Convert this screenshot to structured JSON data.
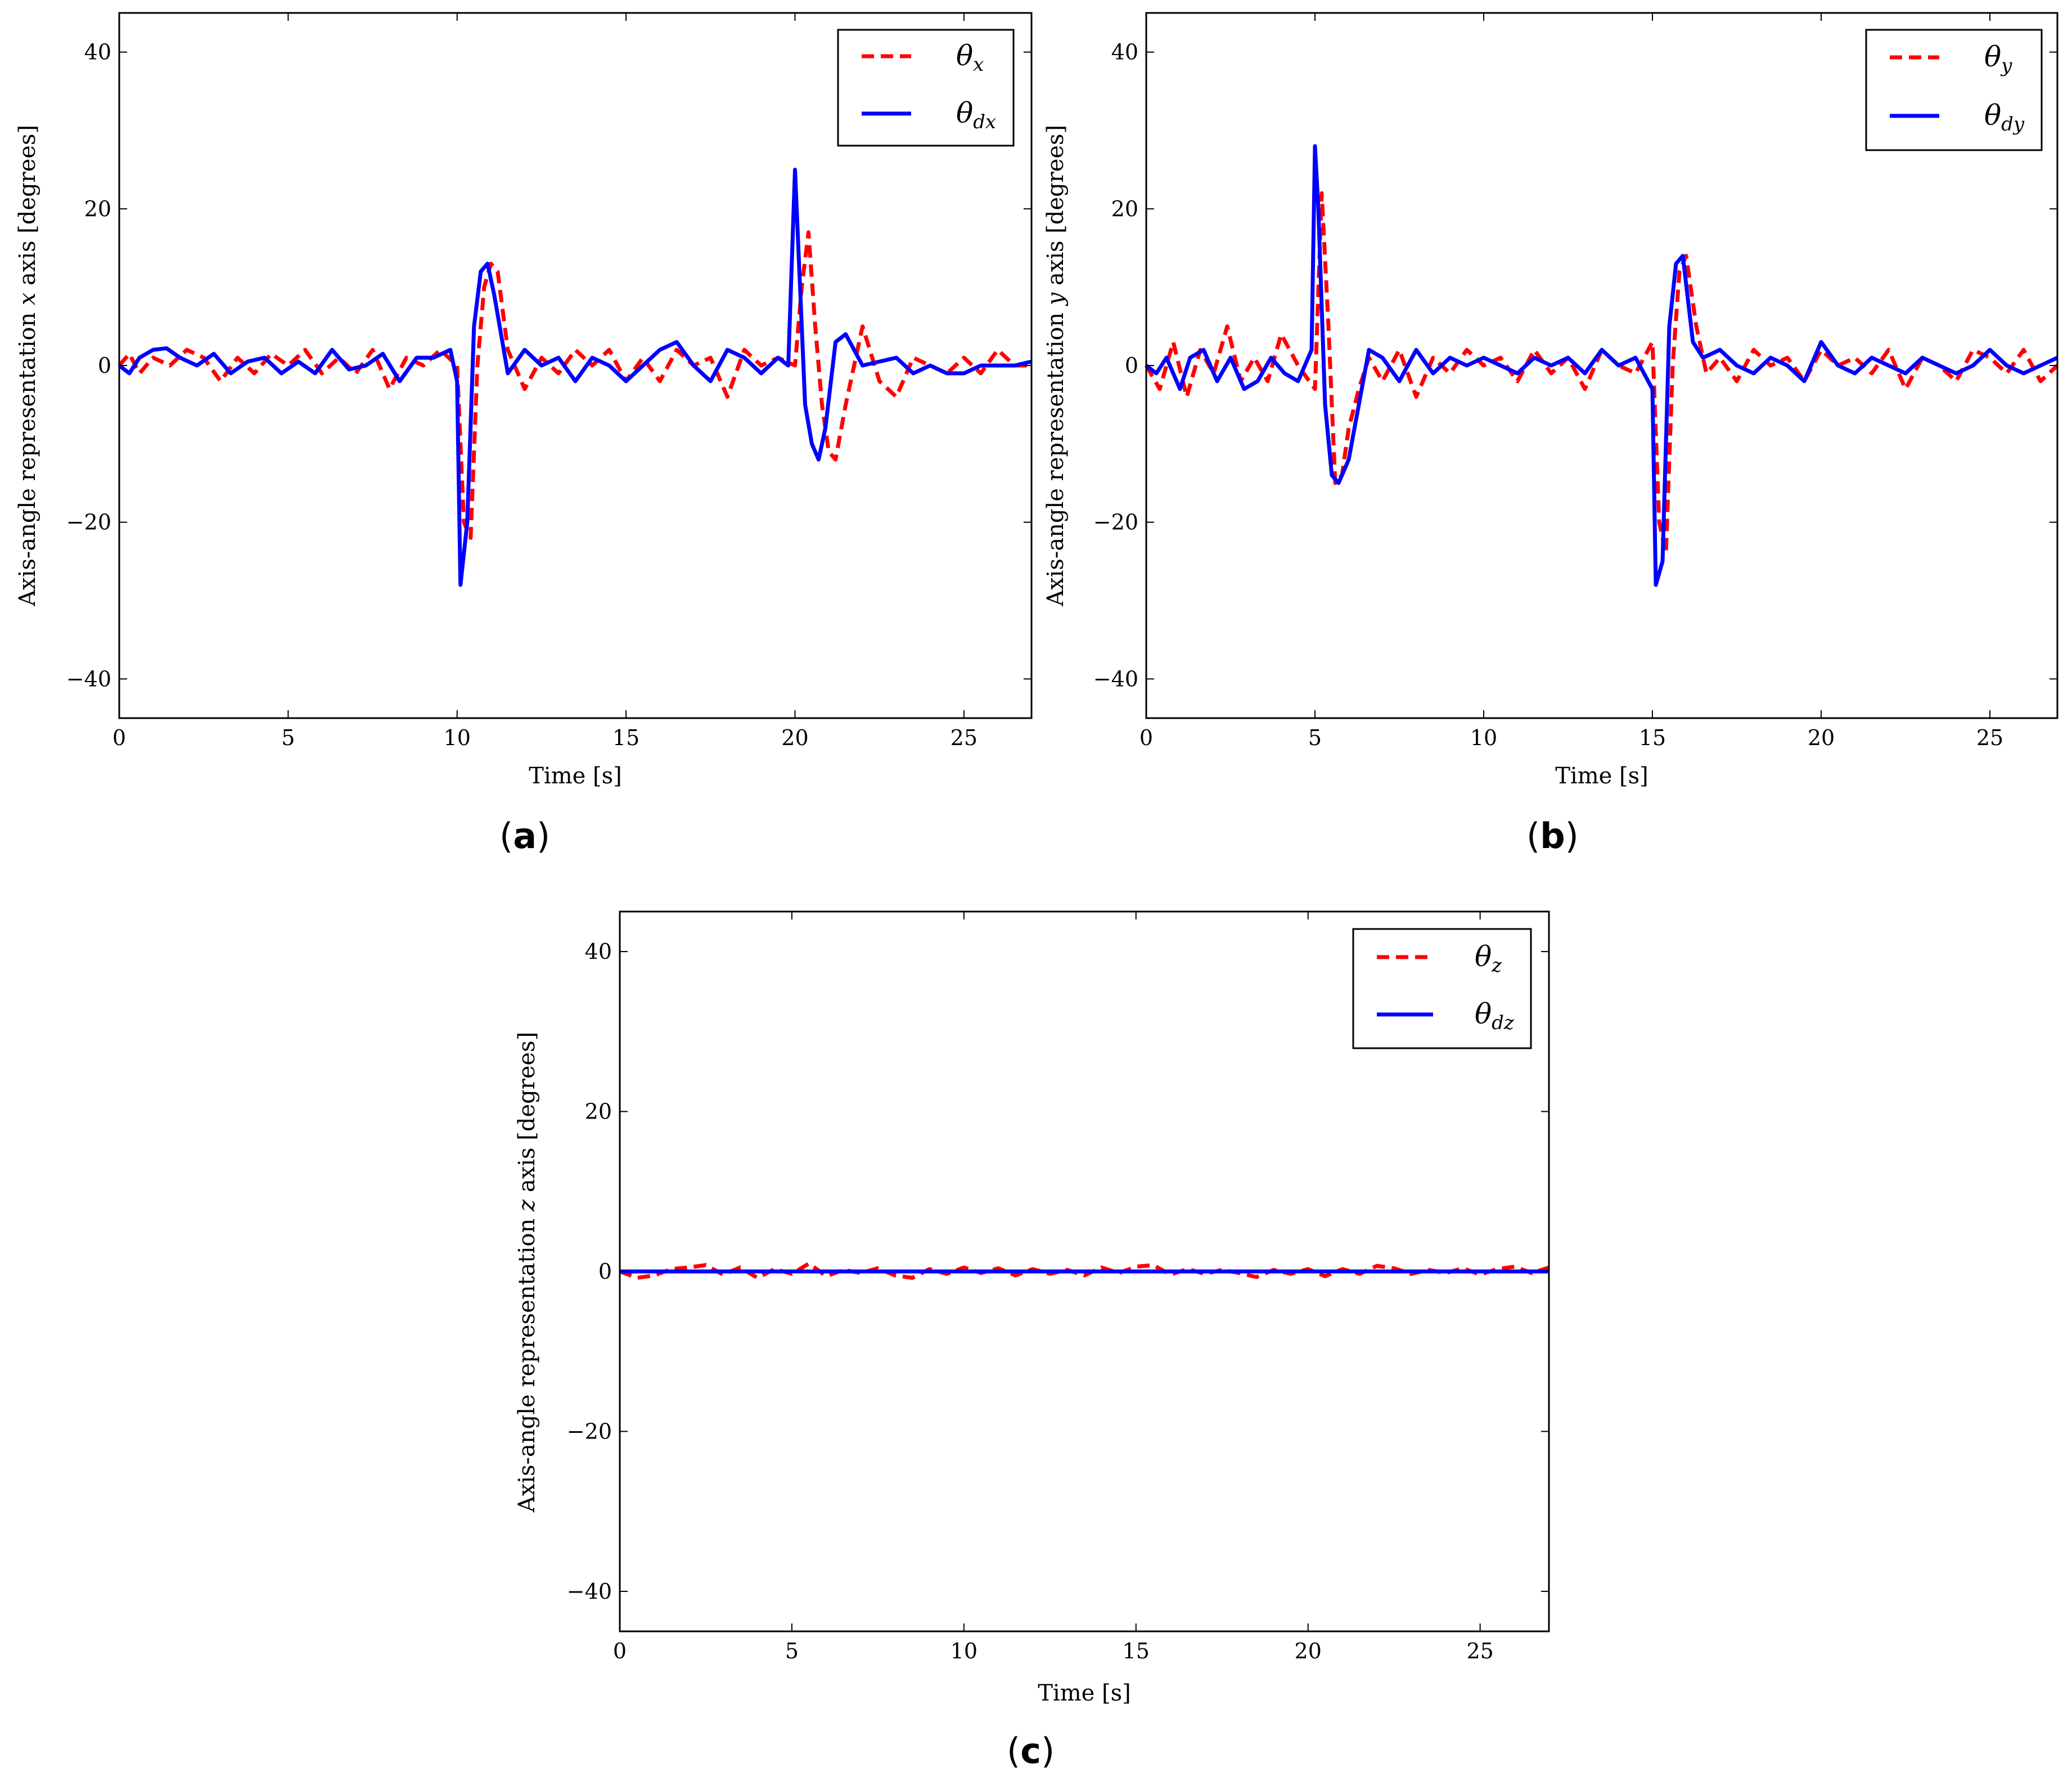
{
  "figure": {
    "captions": [
      "(a)",
      "(b)",
      "(c)"
    ],
    "caption_parts": [
      {
        "open": "(",
        "letter": "a",
        "close": ")"
      },
      {
        "open": "(",
        "letter": "b",
        "close": ")"
      },
      {
        "open": "(",
        "letter": "c",
        "close": ")"
      }
    ]
  },
  "colors": {
    "measured": "#ff0000",
    "desired": "#0000ff",
    "axes": "#000000"
  },
  "chart_data": [
    {
      "type": "line",
      "id": "a",
      "title": "",
      "xlabel": "Time [s]",
      "ylabel": "Axis-angle representation x axis [degrees]",
      "ylabel_parts": {
        "pre": "Axis-angle representation ",
        "var": "x",
        "post": " axis [degrees]"
      },
      "xlim": [
        0,
        27
      ],
      "ylim": [
        -45,
        45
      ],
      "xticks": [
        0,
        5,
        10,
        15,
        20,
        25
      ],
      "yticks": [
        -40,
        -20,
        0,
        20,
        40
      ],
      "legend_position": "top-right",
      "series": [
        {
          "name": "θx",
          "symbol": "θ",
          "subscript": "x",
          "style": "dashed",
          "color": "#ff0000",
          "x": [
            0,
            0.3,
            0.6,
            1,
            1.5,
            2,
            2.5,
            3,
            3.5,
            4,
            4.5,
            5,
            5.5,
            6,
            6.5,
            7,
            7.5,
            8,
            8.5,
            9,
            9.5,
            10,
            10.2,
            10.4,
            10.6,
            10.8,
            11,
            11.2,
            11.5,
            12,
            12.5,
            13,
            13.5,
            14,
            14.5,
            15,
            15.5,
            16,
            16.5,
            17,
            17.5,
            18,
            18.5,
            19,
            19.5,
            20,
            20.2,
            20.4,
            20.6,
            20.8,
            21,
            21.2,
            21.5,
            22,
            22.5,
            23,
            23.5,
            24,
            24.5,
            25,
            25.5,
            26,
            26.5,
            27
          ],
          "y": [
            0,
            1.5,
            -1,
            1,
            0,
            2,
            1,
            -2,
            1,
            -1,
            1.5,
            0,
            2,
            -1,
            1,
            -1,
            2,
            -3,
            1,
            0,
            2,
            0,
            -20,
            -22,
            0,
            10,
            13,
            12,
            2,
            -3,
            1,
            -1,
            2,
            0,
            2,
            -2,
            1,
            -2,
            2,
            0,
            1,
            -4,
            2,
            0,
            1,
            0,
            10,
            17,
            5,
            -5,
            -11,
            -12,
            -5,
            5,
            -2,
            -4,
            1,
            0,
            -1,
            1,
            -1,
            2,
            0,
            0
          ]
        },
        {
          "name": "θdx",
          "symbol": "θ",
          "subscript": "dx",
          "style": "solid",
          "color": "#0000ff",
          "x": [
            0,
            0.3,
            0.6,
            1,
            1.4,
            1.8,
            2.3,
            2.8,
            3.3,
            3.8,
            4.3,
            4.8,
            5.3,
            5.8,
            6.3,
            6.8,
            7.3,
            7.8,
            8.3,
            8.8,
            9.3,
            9.8,
            10,
            10.1,
            10.3,
            10.5,
            10.7,
            10.9,
            11.1,
            11.5,
            12,
            12.5,
            13,
            13.5,
            14,
            14.5,
            15,
            15.5,
            16,
            16.5,
            17,
            17.5,
            18,
            18.5,
            19,
            19.5,
            19.8,
            20,
            20.1,
            20.3,
            20.5,
            20.7,
            20.9,
            21.2,
            21.5,
            22,
            22.5,
            23,
            23.5,
            24,
            24.5,
            25,
            25.5,
            26,
            26.5,
            27
          ],
          "y": [
            0,
            -1,
            1,
            2,
            2.2,
            1,
            0,
            1.5,
            -1,
            0.5,
            1,
            -1,
            0.5,
            -1,
            2,
            -0.5,
            0,
            1.5,
            -2,
            1,
            1,
            2,
            -2,
            -28,
            -20,
            5,
            12,
            13,
            9,
            -1,
            2,
            0,
            1,
            -2,
            1,
            0,
            -2,
            0,
            2,
            3,
            0,
            -2,
            2,
            1,
            -1,
            1,
            0,
            25,
            15,
            -5,
            -10,
            -12,
            -8,
            3,
            4,
            0,
            0.5,
            1,
            -1,
            0,
            -1,
            -1,
            0,
            0,
            0,
            0.5
          ]
        }
      ]
    },
    {
      "type": "line",
      "id": "b",
      "title": "",
      "xlabel": "Time [s]",
      "ylabel": "Axis-angle representation y axis [degrees]",
      "ylabel_parts": {
        "pre": "Axis-angle representation ",
        "var": "y",
        "post": " axis [degrees]"
      },
      "xlim": [
        0,
        27
      ],
      "ylim": [
        -45,
        45
      ],
      "xticks": [
        0,
        5,
        10,
        15,
        20,
        25
      ],
      "yticks": [
        -40,
        -20,
        0,
        20,
        40
      ],
      "legend_position": "top-right",
      "series": [
        {
          "name": "θy",
          "symbol": "θ",
          "subscript": "y",
          "style": "dashed",
          "color": "#ff0000",
          "x": [
            0,
            0.4,
            0.8,
            1.2,
            1.6,
            2,
            2.4,
            2.8,
            3.2,
            3.6,
            4,
            4.5,
            5,
            5.2,
            5.4,
            5.6,
            5.8,
            6,
            6.3,
            6.6,
            7,
            7.5,
            8,
            8.5,
            9,
            9.5,
            10,
            10.5,
            11,
            11.5,
            12,
            12.5,
            13,
            13.5,
            14,
            14.5,
            15,
            15.2,
            15.4,
            15.6,
            15.8,
            16,
            16.3,
            16.6,
            17,
            17.5,
            18,
            18.5,
            19,
            19.5,
            20,
            20.5,
            21,
            21.5,
            22,
            22.5,
            23,
            23.5,
            24,
            24.5,
            25,
            25.5,
            26,
            26.5,
            27
          ],
          "y": [
            0,
            -3,
            3,
            -4,
            2,
            -1,
            5,
            -2,
            1,
            -2,
            4,
            0,
            -3,
            22,
            5,
            -15,
            -14,
            -8,
            -3,
            1,
            -2,
            2,
            -4,
            1,
            -1,
            2,
            0,
            1,
            -2,
            2,
            -1,
            1,
            -3,
            2,
            0,
            -1,
            3,
            -20,
            -24,
            0,
            12,
            14,
            5,
            -1,
            1,
            -2,
            2,
            0,
            1,
            -2,
            2,
            0,
            1,
            -1,
            2,
            -3,
            1,
            0,
            -2,
            2,
            1,
            -1,
            2,
            -2,
            0
          ]
        },
        {
          "name": "θdy",
          "symbol": "θ",
          "subscript": "dy",
          "style": "solid",
          "color": "#0000ff",
          "x": [
            0,
            0.3,
            0.6,
            1,
            1.3,
            1.7,
            2.1,
            2.5,
            2.9,
            3.3,
            3.7,
            4.1,
            4.5,
            4.9,
            5,
            5.1,
            5.3,
            5.5,
            5.7,
            6,
            6.3,
            6.6,
            7,
            7.5,
            8,
            8.5,
            9,
            9.5,
            10,
            10.5,
            11,
            11.5,
            12,
            12.5,
            13,
            13.5,
            14,
            14.5,
            15,
            15.1,
            15.3,
            15.5,
            15.7,
            15.9,
            16.2,
            16.5,
            17,
            17.5,
            18,
            18.5,
            19,
            19.5,
            20,
            20.5,
            21,
            21.5,
            22,
            22.5,
            23,
            23.5,
            24,
            24.5,
            25,
            25.5,
            26,
            26.5,
            27
          ],
          "y": [
            0,
            -1,
            1,
            -3,
            1,
            2,
            -2,
            1,
            -3,
            -2,
            1,
            -1,
            -2,
            2,
            28,
            20,
            -5,
            -14,
            -15,
            -12,
            -5,
            2,
            1,
            -2,
            2,
            -1,
            1,
            0,
            1,
            0,
            -1,
            1,
            0,
            1,
            -1,
            2,
            0,
            1,
            -3,
            -28,
            -25,
            5,
            13,
            14,
            3,
            1,
            2,
            0,
            -1,
            1,
            0,
            -2,
            3,
            0,
            -1,
            1,
            0,
            -1,
            1,
            0,
            -1,
            0,
            2,
            0,
            -1,
            0,
            1
          ]
        }
      ]
    },
    {
      "type": "line",
      "id": "c",
      "title": "",
      "xlabel": "Time [s]",
      "ylabel": "Axis-angle representation z axis [degrees]",
      "ylabel_parts": {
        "pre": "Axis-angle representation ",
        "var": "z",
        "post": " axis [degrees]"
      },
      "xlim": [
        0,
        27
      ],
      "ylim": [
        -45,
        45
      ],
      "xticks": [
        0,
        5,
        10,
        15,
        20,
        25
      ],
      "yticks": [
        -40,
        -20,
        0,
        20,
        40
      ],
      "legend_position": "top-right",
      "series": [
        {
          "name": "θz",
          "symbol": "θ",
          "subscript": "z",
          "style": "dashed",
          "color": "#ff0000",
          "x": [
            0,
            0.5,
            1,
            1.5,
            2,
            2.5,
            3,
            3.5,
            4,
            4.5,
            5,
            5.5,
            6,
            6.5,
            7,
            7.5,
            8,
            8.5,
            9,
            9.5,
            10,
            10.5,
            11,
            11.5,
            12,
            12.5,
            13,
            13.5,
            14,
            14.5,
            15,
            15.5,
            16,
            16.5,
            17,
            17.5,
            18,
            18.5,
            19,
            19.5,
            20,
            20.5,
            21,
            21.5,
            22,
            22.5,
            23,
            23.5,
            24,
            24.5,
            25,
            25.5,
            26,
            26.5,
            27
          ],
          "y": [
            0,
            -0.8,
            -0.5,
            0.3,
            0.5,
            0.8,
            -0.4,
            0.5,
            -0.8,
            0.3,
            -0.3,
            1,
            -0.6,
            0.2,
            -0.2,
            0.4,
            -0.5,
            -0.8,
            0.3,
            -0.3,
            0.5,
            -0.2,
            0.4,
            -0.5,
            0.3,
            -0.3,
            0.2,
            -0.5,
            0.5,
            -0.2,
            0.6,
            0.8,
            -0.4,
            0.3,
            -0.3,
            0.2,
            -0.2,
            -0.7,
            0.2,
            -0.3,
            0.3,
            -0.6,
            0.3,
            -0.3,
            0.7,
            0.4,
            -0.3,
            0.2,
            -0.2,
            0.4,
            -0.4,
            0.3,
            0.6,
            -0.2,
            0.5
          ]
        },
        {
          "name": "θdz",
          "symbol": "θ",
          "subscript": "dz",
          "style": "solid",
          "color": "#0000ff",
          "x": [
            0,
            27
          ],
          "y": [
            0,
            0
          ]
        }
      ]
    }
  ]
}
